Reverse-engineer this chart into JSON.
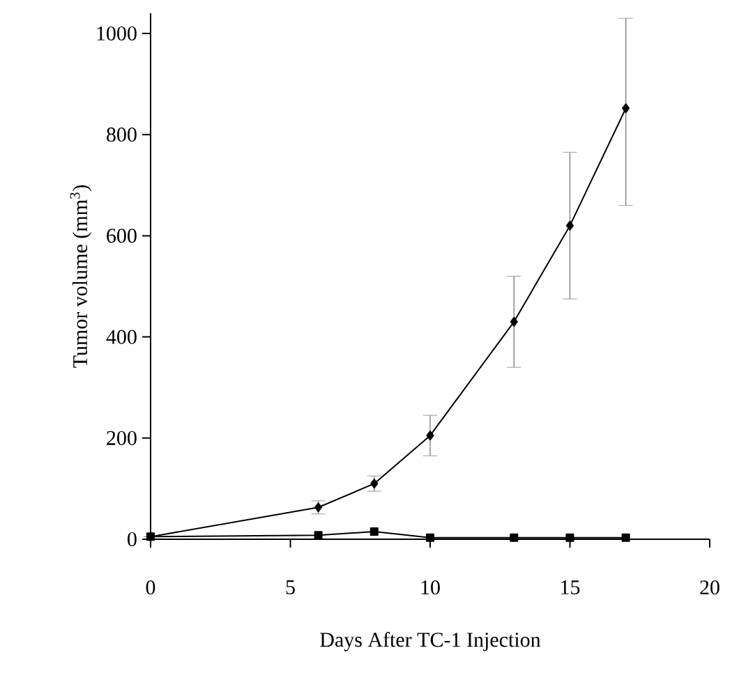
{
  "chart_data": {
    "type": "line",
    "xlabel": "Days After TC-1 Injection",
    "ylabel": "Tumor volume (mm$^{3}$)",
    "x": [
      0,
      6,
      8,
      10,
      13,
      15,
      17
    ],
    "series": [
      {
        "color": "#000000",
        "marker": "diamond",
        "values": [
          5,
          63,
          110,
          205,
          430,
          620,
          852
        ],
        "errors": [
          null,
          13,
          15,
          40,
          90,
          145,
          [
            660,
            1030
          ]
        ]
      },
      {
        "color": "#000000",
        "marker": "square",
        "values": [
          5,
          8,
          15,
          3,
          3,
          3,
          3
        ]
      }
    ],
    "xlim": [
      0,
      20
    ],
    "ylim": [
      0,
      1040
    ],
    "xticks": [
      0,
      5,
      10,
      15,
      20
    ],
    "yticks": [
      0,
      200,
      400,
      600,
      800,
      1000
    ],
    "grid": false,
    "line_style": "solid"
  }
}
